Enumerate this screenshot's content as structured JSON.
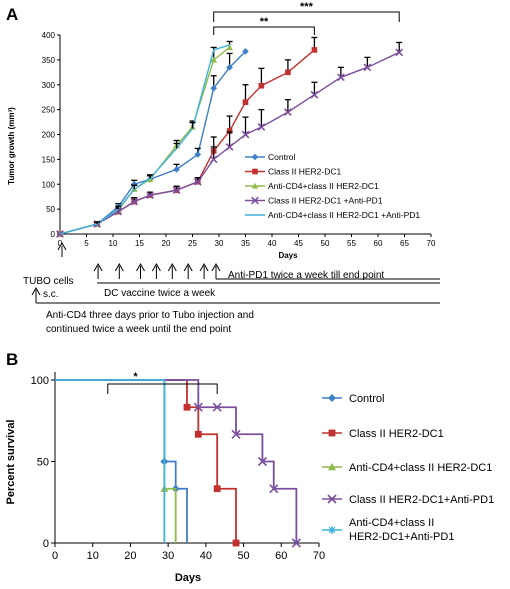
{
  "chart_data": [
    {
      "panel": "A",
      "type": "line",
      "xlabel": "Days",
      "ylabel": "Tumor growth (mm³)",
      "xlim": [
        0,
        70
      ],
      "ylim": [
        0,
        400
      ],
      "x_ticks": [
        "0",
        "5",
        "10",
        "15",
        "20",
        "25",
        "30",
        "35",
        "40",
        "45",
        "50",
        "55",
        "60",
        "65",
        "70"
      ],
      "y_ticks": [
        "0",
        "50",
        "100",
        "150",
        "200",
        "250",
        "300",
        "350",
        "400"
      ],
      "series": [
        {
          "name": "Control",
          "color": "#3f7ec8",
          "marker": "diamond",
          "x": [
            0,
            7,
            11,
            14,
            17,
            22,
            26,
            29,
            32,
            35
          ],
          "y": [
            0,
            20,
            55,
            100,
            110,
            130,
            160,
            293,
            335,
            367
          ],
          "err": [
            0,
            4,
            6,
            8,
            7,
            10,
            12,
            25,
            28,
            0
          ]
        },
        {
          "name": "Class II HER2-DC1",
          "color": "#c0312f",
          "marker": "square",
          "x": [
            0,
            7,
            11,
            14,
            17,
            22,
            26,
            29,
            32,
            35,
            38,
            43,
            48
          ],
          "y": [
            0,
            20,
            45,
            65,
            78,
            88,
            105,
            167,
            207,
            265,
            298,
            325,
            370
          ],
          "err": [
            0,
            4,
            6,
            8,
            6,
            8,
            8,
            28,
            30,
            35,
            35,
            25,
            25
          ]
        },
        {
          "name": "Anti-CD4+class II HER2-DC1",
          "color": "#8fbc4a",
          "marker": "triangle",
          "x": [
            0,
            7,
            11,
            14,
            17,
            22,
            25,
            29,
            32
          ],
          "y": [
            0,
            20,
            48,
            90,
            110,
            178,
            215,
            350,
            375
          ],
          "err": [
            0,
            4,
            6,
            8,
            7,
            10,
            12,
            25,
            12
          ]
        },
        {
          "name": "Class II HER2-DC1 +Anti-PD1",
          "color": "#7b4f9e",
          "marker": "x",
          "x": [
            0,
            7,
            11,
            14,
            17,
            22,
            26,
            29,
            32,
            35,
            38,
            43,
            48,
            53,
            58,
            64
          ],
          "y": [
            0,
            20,
            45,
            65,
            78,
            88,
            105,
            150,
            175,
            200,
            215,
            245,
            280,
            315,
            335,
            365
          ],
          "err": [
            0,
            4,
            6,
            8,
            6,
            8,
            8,
            25,
            30,
            35,
            35,
            25,
            25,
            20,
            20,
            20
          ]
        },
        {
          "name": "Anti-CD4+class II HER2-DC1 +Anti-PD1",
          "color": "#3fb3de",
          "marker": "none",
          "x": [
            0,
            7,
            11,
            14,
            17,
            22,
            25,
            29,
            32
          ],
          "y": [
            0,
            20,
            50,
            90,
            112,
            172,
            212,
            370,
            380
          ],
          "err": [
            0,
            4,
            6,
            8,
            7,
            10,
            12,
            0,
            0
          ]
        }
      ],
      "annotations": [
        {
          "text": "**",
          "from_x": 29,
          "to_x": 48
        },
        {
          "text": "***",
          "from_x": 29,
          "to_x": 64
        }
      ]
    },
    {
      "panel": "B",
      "type": "line",
      "xlabel": "Days",
      "ylabel": "Percent survival",
      "xlim": [
        0,
        70
      ],
      "ylim": [
        0,
        100
      ],
      "x_ticks": [
        "0",
        "10",
        "20",
        "30",
        "40",
        "50",
        "60",
        "70"
      ],
      "y_ticks": [
        "0",
        "50",
        "100"
      ],
      "series": [
        {
          "name": "Control",
          "color": "#3f7ec8",
          "marker": "diamond",
          "x": [
            0,
            29,
            29,
            32,
            32,
            35,
            35
          ],
          "y": [
            100,
            100,
            50,
            50,
            33.3,
            33.3,
            0
          ],
          "marker_points": [
            [
              29,
              50
            ],
            [
              32,
              33.3
            ]
          ]
        },
        {
          "name": "Class II HER2-DC1",
          "color": "#c0312f",
          "marker": "square",
          "x": [
            0,
            35,
            35,
            38,
            38,
            43,
            43,
            48,
            48
          ],
          "y": [
            100,
            100,
            83.3,
            83.3,
            66.7,
            66.7,
            33.3,
            33.3,
            0
          ],
          "marker_points": [
            [
              35,
              83.3
            ],
            [
              38,
              66.7
            ],
            [
              43,
              33.3
            ],
            [
              48,
              0
            ]
          ]
        },
        {
          "name": "Anti-CD4+class II HER2-DC1",
          "color": "#8fbc4a",
          "marker": "triangle",
          "x": [
            0,
            29,
            29,
            32,
            32
          ],
          "y": [
            100,
            100,
            33.3,
            33.3,
            0
          ],
          "marker_points": [
            [
              29,
              33.3
            ]
          ]
        },
        {
          "name": "Class II HER2-DC1+Anti-PD1",
          "color": "#7b4f9e",
          "marker": "x",
          "x": [
            0,
            38,
            38,
            48,
            48,
            55,
            55,
            58,
            58,
            64,
            64
          ],
          "y": [
            100,
            100,
            83.3,
            83.3,
            66.7,
            66.7,
            50,
            50,
            33.3,
            33.3,
            0
          ],
          "marker_points": [
            [
              38,
              83.3
            ],
            [
              43,
              83.3
            ],
            [
              48,
              66.7
            ],
            [
              55,
              50
            ],
            [
              58,
              33.3
            ],
            [
              64,
              0
            ]
          ]
        },
        {
          "name_lines": [
            "Anti-CD4+class II",
            "HER2-DC1+Anti-PD1"
          ],
          "color": "#3fb3de",
          "marker": "star",
          "x": [
            0,
            29,
            29
          ],
          "y": [
            100,
            100,
            0
          ],
          "marker_points": []
        }
      ],
      "annotations": [
        {
          "text": "*",
          "from_x": 14,
          "to_x": 43
        }
      ]
    }
  ],
  "panel_a": {
    "label": "A",
    "timeline": {
      "tubo": "TUBO cells",
      "sc": "s.c.",
      "dc_vaccine": "DC vaccine twice a week",
      "pd1": "Anti-PD1 twice a week till end point",
      "cd4_line1": "Anti-CD4 three days prior to Tubo injection and",
      "cd4_line2": "continued twice a week until the end point",
      "dc_days": [
        7,
        11,
        15,
        18,
        21,
        24,
        27
      ],
      "pd1_day": 29
    }
  },
  "panel_b": {
    "label": "B"
  }
}
